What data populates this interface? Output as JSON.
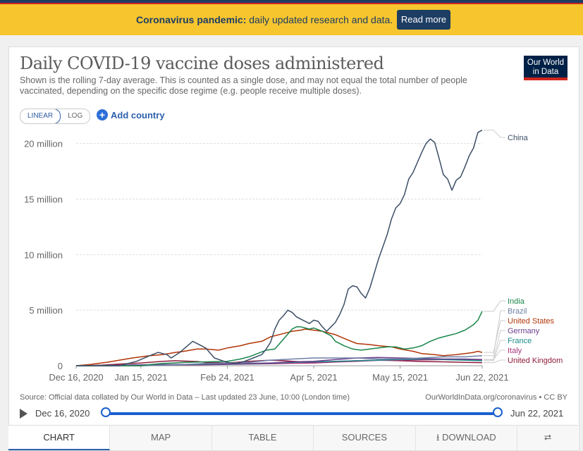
{
  "banner": {
    "bold": "Coronavirus pandemic:",
    "text": " daily updated research and data.",
    "button": "Read more"
  },
  "header": {
    "title": "Daily COVID-19 vaccine doses administered",
    "subtitle": "Shown is the rolling 7-day average. This is counted as a single dose, and may not equal the total number of people vaccinated, depending on the specific dose regime (e.g. people receive multiple doses).",
    "logo_line1": "Our World",
    "logo_line2": "in Data"
  },
  "controls": {
    "linear": "LINEAR",
    "log": "LOG",
    "add_country": "Add country"
  },
  "footer": {
    "source": "Source: Official data collated by Our World in Data – Last updated 23 June, 10:00 (London time)",
    "credit": "OurWorldInData.org/coronavirus • CC BY"
  },
  "timeline": {
    "start": "Dec 16, 2020",
    "end": "Jun 22, 2021"
  },
  "tabs": [
    "CHART",
    "MAP",
    "TABLE",
    "SOURCES",
    "DOWNLOAD"
  ],
  "colors": {
    "China": "#3c4e66",
    "India": "#18864b",
    "Brazil": "#6d7fa6",
    "United States": "#b13507",
    "Germany": "#6b3d8c",
    "France": "#1b8a8a",
    "Italy": "#a8327a",
    "United Kingdom": "#8e1c3b"
  },
  "chart_data": {
    "type": "line",
    "title": "Daily COVID-19 vaccine doses administered",
    "xlabel": "",
    "ylabel": "",
    "y_ticks": [
      {
        "value": 0,
        "label": "0"
      },
      {
        "value": 5000000,
        "label": "5 million"
      },
      {
        "value": 10000000,
        "label": "10 million"
      },
      {
        "value": 15000000,
        "label": "15 million"
      },
      {
        "value": 20000000,
        "label": "20 million"
      }
    ],
    "x_ticks": [
      "Dec 16, 2020",
      "Jan 15, 2021",
      "Feb 24, 2021",
      "Apr 5, 2021",
      "May 15, 2021",
      "Jun 22, 2021"
    ],
    "x_tick_days": [
      0,
      30,
      70,
      110,
      150,
      188
    ],
    "xlim": [
      0,
      188
    ],
    "ylim": [
      0,
      21500000
    ],
    "grid": "horizontal dashed",
    "legend": "right-end labels",
    "series": [
      {
        "name": "China",
        "x": [
          0,
          20,
          28,
          34,
          38,
          42,
          44,
          48,
          54,
          60,
          64,
          70,
          74,
          78,
          82,
          86,
          88,
          90,
          92,
          94,
          96,
          98,
          100,
          102,
          104,
          106,
          108,
          110,
          112,
          114,
          116,
          118,
          120,
          122,
          124,
          126,
          128,
          130,
          132,
          134,
          136,
          138,
          140,
          142,
          144,
          146,
          148,
          150,
          152,
          154,
          156,
          158,
          160,
          162,
          164,
          166,
          168,
          170,
          172,
          174,
          176,
          178,
          180,
          182,
          184,
          186,
          188
        ],
        "y": [
          0,
          0,
          400000,
          900000,
          1200000,
          1000000,
          700000,
          1200000,
          2200000,
          1600000,
          700000,
          300000,
          200000,
          400000,
          700000,
          1000000,
          1500000,
          2100000,
          3300000,
          4100000,
          4500000,
          5000000,
          4800000,
          4400000,
          4200000,
          4000000,
          3800000,
          4100000,
          4000000,
          3500000,
          3100000,
          3500000,
          3900000,
          4600000,
          5500000,
          6900000,
          7200000,
          7100000,
          6500000,
          6100000,
          7000000,
          8300000,
          9600000,
          10700000,
          11800000,
          13200000,
          14200000,
          14600000,
          15400000,
          16800000,
          17400000,
          18300000,
          19200000,
          20000000,
          20400000,
          20100000,
          18700000,
          17200000,
          16800000,
          15800000,
          16700000,
          17000000,
          17900000,
          18900000,
          19600000,
          21000000,
          21200000
        ]
      },
      {
        "name": "India",
        "x": [
          0,
          30,
          34,
          40,
          50,
          60,
          70,
          76,
          80,
          84,
          88,
          92,
          96,
          100,
          102,
          104,
          106,
          108,
          110,
          114,
          118,
          120,
          124,
          128,
          132,
          136,
          140,
          144,
          148,
          152,
          156,
          160,
          164,
          168,
          172,
          176,
          180,
          184,
          186,
          188
        ],
        "y": [
          0,
          0,
          100000,
          200000,
          300000,
          350000,
          400000,
          600000,
          800000,
          1100000,
          1400000,
          1500000,
          2400000,
          3300000,
          3500000,
          3500000,
          3400000,
          3300000,
          3400000,
          3100000,
          2700000,
          2200000,
          1800000,
          1500000,
          1400000,
          1500000,
          1600000,
          1700000,
          1700000,
          1500000,
          1600000,
          1800000,
          2200000,
          2500000,
          2700000,
          2900000,
          3200000,
          3700000,
          4100000,
          4900000
        ]
      },
      {
        "name": "Brazil",
        "x": [
          0,
          30,
          40,
          50,
          60,
          70,
          80,
          90,
          100,
          110,
          120,
          130,
          140,
          150,
          160,
          170,
          180,
          188
        ],
        "y": [
          0,
          0,
          50000,
          100000,
          200000,
          250000,
          300000,
          500000,
          600000,
          700000,
          700000,
          700000,
          600000,
          600000,
          700000,
          800000,
          800000,
          900000
        ]
      },
      {
        "name": "United States",
        "x": [
          0,
          6,
          10,
          14,
          20,
          26,
          30,
          34,
          40,
          46,
          50,
          56,
          60,
          66,
          70,
          76,
          80,
          86,
          90,
          96,
          100,
          104,
          106,
          110,
          114,
          120,
          126,
          130,
          136,
          140,
          146,
          150,
          156,
          160,
          166,
          170,
          176,
          180,
          184,
          186,
          188
        ],
        "y": [
          0,
          100000,
          200000,
          300000,
          500000,
          700000,
          800000,
          900000,
          1000000,
          1200000,
          1300000,
          1500000,
          1500000,
          1400000,
          1600000,
          1800000,
          2000000,
          2200000,
          2600000,
          2900000,
          3100000,
          3200000,
          3300000,
          3200000,
          3100000,
          2800000,
          2300000,
          2000000,
          1900000,
          1800000,
          1700000,
          1500000,
          1300000,
          1100000,
          1000000,
          900000,
          1000000,
          1100000,
          1200000,
          1300000,
          1200000
        ]
      },
      {
        "name": "Germany",
        "x": [
          0,
          10,
          20,
          30,
          40,
          50,
          60,
          70,
          80,
          90,
          100,
          110,
          120,
          130,
          140,
          150,
          160,
          170,
          180,
          188
        ],
        "y": [
          0,
          20000,
          50000,
          80000,
          100000,
          120000,
          140000,
          160000,
          200000,
          250000,
          350000,
          400000,
          550000,
          700000,
          750000,
          700000,
          650000,
          600000,
          600000,
          550000
        ]
      },
      {
        "name": "France",
        "x": [
          0,
          10,
          20,
          30,
          40,
          50,
          60,
          70,
          80,
          90,
          100,
          110,
          120,
          130,
          140,
          150,
          160,
          170,
          180,
          188
        ],
        "y": [
          0,
          10000,
          40000,
          70000,
          90000,
          100000,
          110000,
          140000,
          170000,
          220000,
          300000,
          350000,
          400000,
          450000,
          500000,
          550000,
          600000,
          550000,
          500000,
          450000
        ]
      },
      {
        "name": "Italy",
        "x": [
          0,
          10,
          20,
          30,
          40,
          50,
          60,
          70,
          80,
          90,
          100,
          110,
          120,
          130,
          140,
          150,
          160,
          170,
          180,
          188
        ],
        "y": [
          0,
          10000,
          40000,
          60000,
          70000,
          80000,
          90000,
          120000,
          150000,
          180000,
          220000,
          250000,
          330000,
          400000,
          480000,
          500000,
          520000,
          550000,
          570000,
          550000
        ]
      },
      {
        "name": "United Kingdom",
        "x": [
          0,
          6,
          12,
          20,
          30,
          40,
          46,
          50,
          56,
          60,
          70,
          80,
          90,
          96,
          100,
          110,
          120,
          130,
          140,
          150,
          160,
          170,
          180,
          188
        ],
        "y": [
          0,
          20000,
          60000,
          150000,
          250000,
          400000,
          450000,
          420000,
          380000,
          300000,
          250000,
          400000,
          500000,
          450000,
          400000,
          300000,
          380000,
          450000,
          500000,
          450000,
          380000,
          350000,
          300000,
          280000
        ]
      }
    ],
    "end_labels": [
      "China",
      "India",
      "Brazil",
      "United States",
      "Germany",
      "France",
      "Italy",
      "United Kingdom"
    ]
  }
}
